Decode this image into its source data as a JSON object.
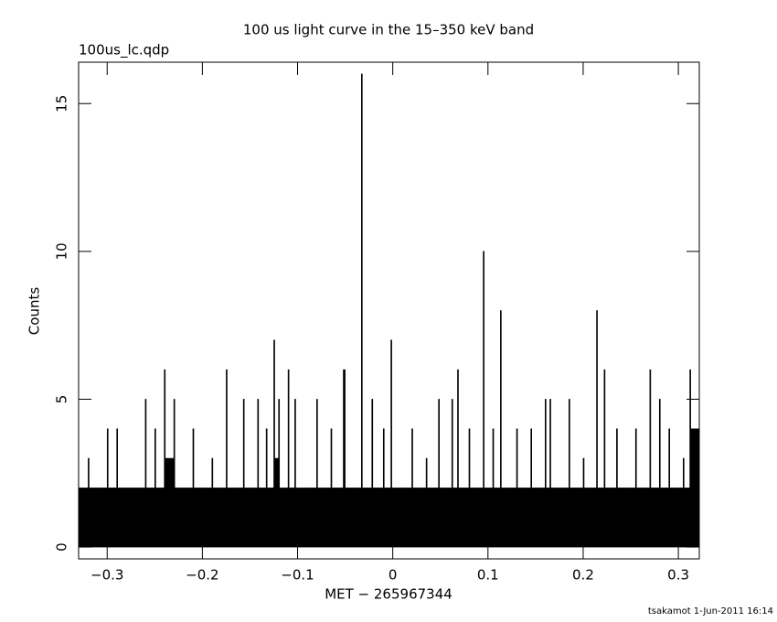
{
  "chart_data": {
    "type": "step-area",
    "title": "100 us light curve in the 15–350 keV band",
    "subtitle": "100us_lc.qdp",
    "x_label": "MET − 265967344",
    "y_label": "Counts",
    "footer": "tsakamot  1-Jun-2011 16:14",
    "color": "#000000",
    "x": [
      -0.33,
      -0.32,
      -0.319,
      -0.3,
      -0.299,
      -0.29,
      -0.289,
      -0.26,
      -0.259,
      -0.25,
      -0.249,
      -0.24,
      -0.239,
      -0.235,
      -0.23,
      -0.229,
      -0.21,
      -0.209,
      -0.19,
      -0.189,
      -0.175,
      -0.174,
      -0.157,
      -0.156,
      -0.142,
      -0.141,
      -0.133,
      -0.132,
      -0.125,
      -0.124,
      -0.12,
      -0.119,
      -0.11,
      -0.109,
      -0.103,
      -0.102,
      -0.08,
      -0.079,
      -0.065,
      -0.064,
      -0.052,
      -0.05,
      -0.033,
      -0.032,
      -0.022,
      -0.021,
      -0.01,
      -0.009,
      -0.002,
      -0.001,
      0.02,
      0.021,
      0.035,
      0.036,
      0.048,
      0.049,
      0.062,
      0.063,
      0.068,
      0.069,
      0.08,
      0.081,
      0.095,
      0.096,
      0.105,
      0.106,
      0.113,
      0.114,
      0.13,
      0.131,
      0.145,
      0.146,
      0.16,
      0.161,
      0.165,
      0.166,
      0.185,
      0.186,
      0.2,
      0.201,
      0.214,
      0.215,
      0.222,
      0.223,
      0.235,
      0.236,
      0.255,
      0.256,
      0.27,
      0.271,
      0.28,
      0.281,
      0.29,
      0.291,
      0.305,
      0.306,
      0.312,
      0.313,
      0.318
    ],
    "values": [
      2,
      3,
      2,
      4,
      2,
      4,
      2,
      5,
      2,
      4,
      2,
      6,
      3,
      3,
      5,
      2,
      4,
      2,
      3,
      2,
      6,
      2,
      5,
      2,
      5,
      2,
      4,
      2,
      7,
      3,
      5,
      2,
      6,
      2,
      5,
      2,
      5,
      2,
      4,
      2,
      6,
      2,
      16,
      2,
      5,
      2,
      4,
      2,
      7,
      2,
      4,
      2,
      3,
      2,
      5,
      2,
      5,
      2,
      6,
      2,
      4,
      2,
      10,
      2,
      4,
      2,
      8,
      2,
      4,
      2,
      4,
      2,
      5,
      2,
      5,
      2,
      5,
      2,
      3,
      2,
      8,
      2,
      6,
      2,
      4,
      2,
      4,
      2,
      6,
      2,
      5,
      2,
      4,
      2,
      3,
      2,
      6,
      4,
      4
    ],
    "xlim": [
      -0.33,
      0.322
    ],
    "ylim": [
      -0.4,
      16.4
    ],
    "xticks": [
      {
        "value": -0.3,
        "label": "−0.3"
      },
      {
        "value": -0.2,
        "label": "−0.2"
      },
      {
        "value": -0.1,
        "label": "−0.1"
      },
      0,
      0.1,
      0.2,
      0.3
    ],
    "yticks": [
      0,
      5,
      10,
      15
    ]
  }
}
